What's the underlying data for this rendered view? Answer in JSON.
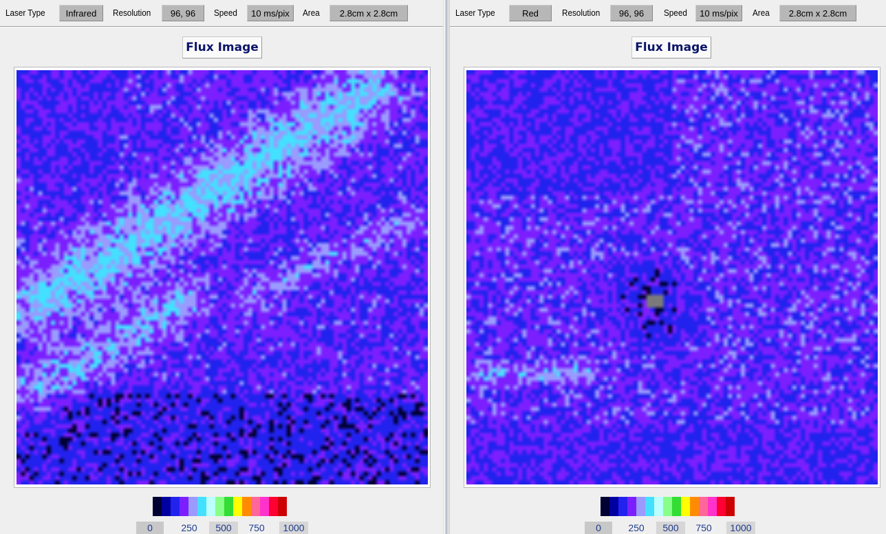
{
  "panels": [
    {
      "laser_type_label": "Laser Type",
      "laser_type": "Infrared",
      "resolution_label": "Resolution",
      "resolution": "96, 96",
      "speed_label": "Speed",
      "speed": "10 ms/pix",
      "area_label": "Area",
      "area": "2.8cm x 2.8cm",
      "title": "Flux Image",
      "scale_ticks": [
        "0",
        "250",
        "500",
        "750",
        "1000"
      ]
    },
    {
      "laser_type_label": "Laser Type",
      "laser_type": "Red",
      "resolution_label": "Resolution",
      "resolution": "96, 96",
      "speed_label": "Speed",
      "speed": "10 ms/pix",
      "area_label": "Area",
      "area": "2.8cm x 2.8cm",
      "title": "Flux Image",
      "scale_ticks": [
        "0",
        "250",
        "500",
        "750",
        "1000"
      ]
    }
  ],
  "palette": [
    "#000033",
    "#0000a0",
    "#2222ee",
    "#7b1fff",
    "#9a9aff",
    "#44e0ff",
    "#bbffff",
    "#88ff88",
    "#33dd33",
    "#ffff00",
    "#ff8c00",
    "#ff6699",
    "#ff33cc",
    "#ff0033",
    "#cc0000"
  ],
  "chart_data": [
    {
      "type": "heatmap",
      "title": "Flux Image",
      "grid_size": [
        96,
        96
      ],
      "range": [
        0,
        1000
      ],
      "colorbar_ticks": [
        0,
        250,
        500,
        750,
        1000
      ]
    },
    {
      "type": "heatmap",
      "title": "Flux Image",
      "grid_size": [
        96,
        96
      ],
      "range": [
        0,
        1000
      ],
      "colorbar_ticks": [
        0,
        250,
        500,
        750,
        1000
      ]
    }
  ]
}
